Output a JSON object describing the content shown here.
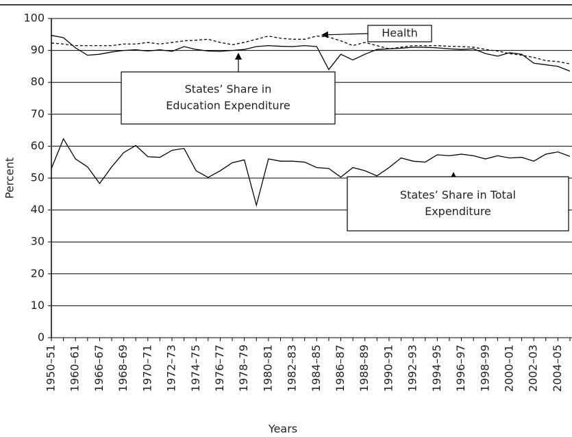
{
  "chart_data": {
    "type": "line",
    "x_label": "Years",
    "y_label": "Percent",
    "categories": [
      "1950–51",
      null,
      "1960–61",
      null,
      "1966–67",
      null,
      "1968–69",
      null,
      "1970–71",
      null,
      "1972–73",
      null,
      "1974–75",
      null,
      "1976–77",
      null,
      "1978–79",
      null,
      "1980–81",
      null,
      "1982–83",
      null,
      "1984–85",
      null,
      "1986–87",
      null,
      "1988–89",
      null,
      "1990–91",
      null,
      "1992–93",
      null,
      "1994–95",
      null,
      "1996–97",
      null,
      "1998–99",
      null,
      "2000–01",
      null,
      "2002–03",
      null,
      "2004–05",
      null
    ],
    "series": [
      {
        "name": "Health",
        "color": "#000000",
        "dash": "dashed",
        "values": [
          92.3,
          92,
          91.5,
          91.5,
          91.5,
          91.5,
          92,
          92,
          92.5,
          92,
          92.5,
          93,
          93.2,
          93.5,
          92.5,
          91.8,
          92.5,
          93.5,
          94.5,
          93.8,
          93.5,
          93.5,
          94.5,
          94.2,
          93,
          91.5,
          92.5,
          91.5,
          90.5,
          91,
          91.5,
          91.5,
          91.5,
          91.3,
          91.2,
          91,
          90.3,
          89.8,
          89,
          88.5,
          87.8,
          86.8,
          86.5,
          85.8
        ]
      },
      {
        "name": "States’ Share in Education Expenditure",
        "color": "#000000",
        "dash": "solid",
        "values": [
          94.7,
          94,
          90.8,
          88.5,
          88.8,
          89.5,
          90,
          90.2,
          89.8,
          90.2,
          89.7,
          91.2,
          90.3,
          89.8,
          89.7,
          90,
          90.3,
          91.2,
          91.5,
          91.3,
          91.2,
          91.5,
          91.2,
          84,
          88.8,
          87,
          88.8,
          90.3,
          90.5,
          90.7,
          91,
          91,
          90.8,
          90.5,
          90.3,
          90.5,
          89,
          88.2,
          89.3,
          88.8,
          86,
          85.5,
          85,
          83.5
        ]
      },
      {
        "name": "States’ Share in Total Expenditure",
        "color": "#000000",
        "dash": "solid",
        "values": [
          53,
          62.3,
          56,
          53.5,
          48.3,
          53.5,
          58,
          60.2,
          56.7,
          56.5,
          58.7,
          59.3,
          52.3,
          50.2,
          52.3,
          54.8,
          55.7,
          41.5,
          56,
          55.3,
          55.3,
          55,
          53.3,
          53,
          50.3,
          53.3,
          52.3,
          50.7,
          53.3,
          56.3,
          55.3,
          55,
          57.3,
          57,
          57.5,
          57,
          56,
          57,
          56.3,
          56.5,
          55.3,
          57.5,
          58.2,
          56.8
        ]
      }
    ],
    "annotations": [
      {
        "lines": [
          "Health"
        ]
      },
      {
        "lines": [
          "States’ Share in",
          "Education Expenditure"
        ]
      },
      {
        "lines": [
          "States’ Share in Total",
          "Expenditure"
        ]
      }
    ],
    "ylim": [
      0,
      100
    ],
    "yticks": [
      0,
      10,
      20,
      30,
      40,
      50,
      60,
      70,
      80,
      90,
      100
    ],
    "grid": true
  }
}
